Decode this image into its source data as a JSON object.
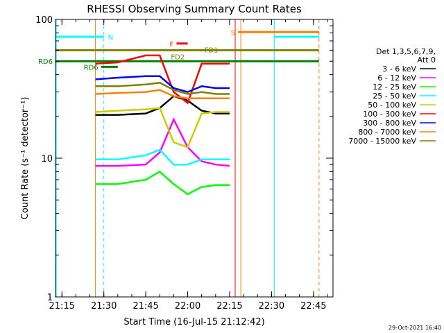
{
  "chart_data": {
    "type": "line",
    "title": "RHESSI Observing Summary Count Rates",
    "xlabel": "Start Time (16-Jul-15 21:12:42)",
    "ylabel": "Count Rate (s⁻¹ detector⁻¹)",
    "xlim": [
      "21:12:42",
      "22:52:00"
    ],
    "ylim": [
      1,
      100
    ],
    "y_scale": "log",
    "x_ticks": [
      "21:15",
      "21:30",
      "21:45",
      "22:00",
      "22:15",
      "22:30",
      "22:45"
    ],
    "y_ticks": [
      "1",
      "10",
      "100"
    ],
    "legend": {
      "header": [
        "Det 1,3,5,6,7,9,",
        "Att 0"
      ],
      "placement": "right"
    },
    "timestamp": "29-Oct-2021 16:40",
    "series": [
      {
        "name": "3 - 6 keV",
        "color": "#000000",
        "x": [
          "21:27",
          "21:35",
          "21:45",
          "21:50",
          "21:55",
          "22:00",
          "22:05",
          "22:10",
          "22:15"
        ],
        "y": [
          20.5,
          20.5,
          21,
          23,
          28,
          26,
          22,
          21,
          21
        ]
      },
      {
        "name": "6 - 12 keV",
        "color": "#ff00ff",
        "x": [
          "21:27",
          "21:35",
          "21:45",
          "21:50",
          "21:55",
          "22:00",
          "22:05",
          "22:10",
          "22:15"
        ],
        "y": [
          8.8,
          8.8,
          9,
          11,
          19,
          12,
          9.5,
          9,
          8.8
        ]
      },
      {
        "name": "12 - 25 keV",
        "color": "#00ff00",
        "x": [
          "21:27",
          "21:35",
          "21:45",
          "21:50",
          "21:55",
          "22:00",
          "22:05",
          "22:10",
          "22:15"
        ],
        "y": [
          6.5,
          6.5,
          7,
          8,
          6.5,
          5.5,
          6.2,
          6.4,
          6.4
        ]
      },
      {
        "name": "25 - 50 keV",
        "color": "#00ffff",
        "x": [
          "21:27",
          "21:35",
          "21:45",
          "21:50",
          "21:55",
          "22:00",
          "22:05",
          "22:10",
          "22:15"
        ],
        "y": [
          9.8,
          9.8,
          10.5,
          11.5,
          9,
          9,
          9.8,
          9.8,
          9.8
        ]
      },
      {
        "name": "50 - 100 keV",
        "color": "#cccc00",
        "x": [
          "21:27",
          "21:35",
          "21:45",
          "21:50",
          "21:55",
          "22:00",
          "22:05",
          "22:10",
          "22:15"
        ],
        "y": [
          21.5,
          22,
          22.5,
          23,
          13,
          12,
          21,
          21.5,
          21.5
        ]
      },
      {
        "name": "100 - 300 keV",
        "color": "#ff0000",
        "x": [
          "21:27",
          "21:35",
          "21:45",
          "21:50",
          "21:55",
          "22:00",
          "22:05",
          "22:10",
          "22:15"
        ],
        "y": [
          48,
          49,
          55,
          55,
          30,
          25,
          48,
          48,
          48
        ]
      },
      {
        "name": "300 - 800 keV",
        "color": "#0000ff",
        "x": [
          "21:27",
          "21:35",
          "21:45",
          "21:50",
          "21:55",
          "22:00",
          "22:05",
          "22:10",
          "22:15"
        ],
        "y": [
          37,
          38,
          39,
          39,
          32,
          30,
          33,
          32,
          32
        ]
      },
      {
        "name": "800 - 7000 keV",
        "color": "#ff8000",
        "x": [
          "21:27",
          "21:35",
          "21:45",
          "21:50",
          "21:55",
          "22:00",
          "22:05",
          "22:10",
          "22:15"
        ],
        "y": [
          29,
          29.5,
          30,
          31,
          28,
          27,
          27,
          27,
          27
        ]
      },
      {
        "name": "7000 - 15000 keV",
        "color": "#808000",
        "x": [
          "21:27",
          "21:35",
          "21:45",
          "21:50",
          "21:55",
          "22:00",
          "22:05",
          "22:10",
          "22:15"
        ],
        "y": [
          33,
          33,
          34,
          35,
          31,
          29,
          30,
          29,
          29
        ]
      }
    ],
    "flags": [
      {
        "label": "N",
        "color": "#00ffff",
        "x1": "21:13",
        "x2": "21:30",
        "y": 75,
        "side": "right"
      },
      {
        "label": "N",
        "color": "#00ffff",
        "x1": "22:31",
        "x2": "22:47",
        "y": 75,
        "side": "none"
      },
      {
        "label": "S",
        "color": "#ff8000",
        "x1": "22:18",
        "x2": "22:47",
        "y": 81,
        "side": "left"
      },
      {
        "label": "F",
        "color": "#ff0000",
        "x1": "21:56",
        "x2": "22:00",
        "y": 67,
        "side": "left"
      },
      {
        "label": "FD2",
        "color": "#808000",
        "x1": "21:12:42",
        "x2": "22:47",
        "y": 60,
        "side": "none"
      },
      {
        "label": "FD1",
        "color": "#808000",
        "x1": "22:04",
        "x2": "22:06",
        "y": 60,
        "side": "none"
      },
      {
        "label": "RD6",
        "color": "#008000",
        "x1": "21:12:42",
        "x2": "22:47",
        "y": 50,
        "side": "left"
      },
      {
        "label": "RD6",
        "color": "#008000",
        "x1": "21:29",
        "x2": "21:35",
        "y": 45.5,
        "side": "left"
      }
    ],
    "vlines": [
      {
        "x": "21:13",
        "color": "#00ffff",
        "dash": false
      },
      {
        "x": "21:30",
        "color": "#00ffff",
        "dash": true
      },
      {
        "x": "21:27",
        "color": "#ff8000",
        "dash": false
      },
      {
        "x": "22:17",
        "color": "#ff0000",
        "dash": false
      },
      {
        "x": "22:19",
        "color": "#ff8000",
        "dash": false
      },
      {
        "x": "22:31",
        "color": "#00ffff",
        "dash": false
      },
      {
        "x": "22:47",
        "color": "#ff8000",
        "dash": true
      }
    ]
  }
}
